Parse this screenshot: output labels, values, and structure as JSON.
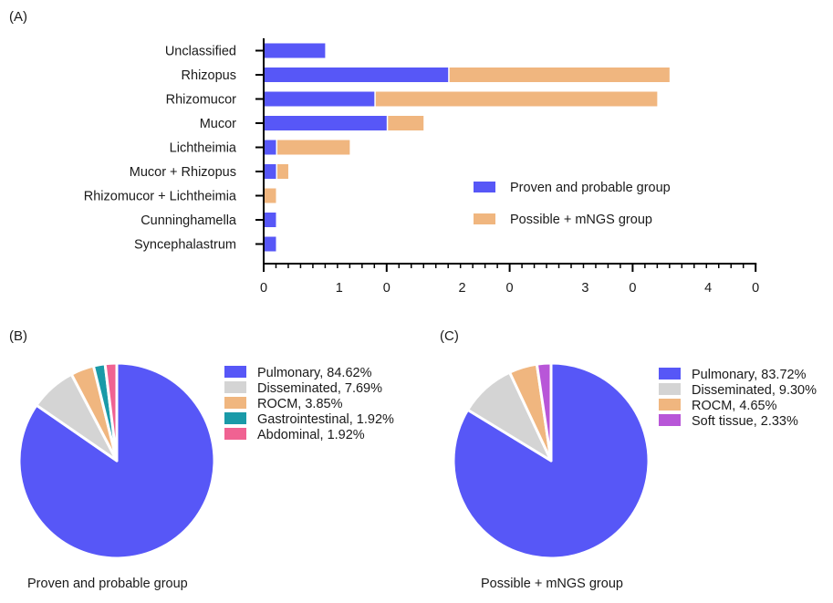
{
  "chart_data": [
    {
      "panel": "(A)",
      "type": "bar",
      "orientation": "horizontal",
      "stacked": true,
      "categories": [
        "Unclassified",
        "Rhizopus",
        "Rhizomucor",
        "Mucor",
        "Lichtheimia",
        "Mucor + Rhizopus",
        "Rhizomucor + Lichtheimia",
        "Cunninghamella",
        "Syncephalastrum"
      ],
      "series": [
        {
          "name": "Proven and probable group",
          "color": "#5757F7",
          "values": [
            5,
            15,
            9,
            10,
            1,
            1,
            0,
            1,
            1
          ]
        },
        {
          "name": "Possible + mNGS group",
          "color": "#F0B67F",
          "values": [
            0,
            18,
            23,
            3,
            6,
            1,
            1,
            0,
            0
          ]
        }
      ],
      "xlim": [
        0,
        40
      ],
      "major_ticks": [
        0,
        10,
        20,
        30,
        40
      ],
      "tick_labels": [
        {
          "value": 0,
          "parts": [
            "0"
          ]
        },
        {
          "value": 10,
          "parts": [
            "1",
            "0"
          ]
        },
        {
          "value": 20,
          "parts": [
            "2",
            "0"
          ]
        },
        {
          "value": 30,
          "parts": [
            "3",
            "0"
          ]
        },
        {
          "value": 40,
          "parts": [
            "4",
            "0"
          ]
        }
      ],
      "minor_tick_step": 1,
      "legend_position": "bottom-right",
      "title": "",
      "xlabel": "",
      "ylabel": ""
    },
    {
      "panel": "(B)",
      "type": "pie",
      "caption": "Proven and probable group",
      "start": "top",
      "direction": "clockwise",
      "slices": [
        {
          "label": "Pulmonary",
          "value": 84.62,
          "legend": "Pulmonary, 84.62%",
          "color": "#5757F7"
        },
        {
          "label": "Disseminated",
          "value": 7.69,
          "legend": "Disseminated, 7.69%",
          "color": "#D4D4D4"
        },
        {
          "label": "ROCM",
          "value": 3.85,
          "legend": "ROCM, 3.85%",
          "color": "#F0B67F"
        },
        {
          "label": "Gastrointestinal",
          "value": 1.92,
          "legend": "Gastrointestinal, 1.92%",
          "color": "#1A9AA8"
        },
        {
          "label": "Abdominal",
          "value": 1.92,
          "legend": "Abdominal, 1.92%",
          "color": "#F06292"
        }
      ],
      "legend_position": "right"
    },
    {
      "panel": "(C)",
      "type": "pie",
      "caption": "Possible + mNGS group",
      "start": "top",
      "direction": "clockwise",
      "slices": [
        {
          "label": "Pulmonary",
          "value": 83.72,
          "legend": "Pulmonary, 83.72%",
          "color": "#5757F7"
        },
        {
          "label": "Disseminated",
          "value": 9.3,
          "legend": "Disseminated, 9.30%",
          "color": "#D4D4D4"
        },
        {
          "label": "ROCM",
          "value": 4.65,
          "legend": "ROCM, 4.65%",
          "color": "#F0B67F"
        },
        {
          "label": "Soft tissue",
          "value": 2.33,
          "legend": "Soft tissue, 2.33%",
          "color": "#B856D8"
        }
      ],
      "legend_position": "right"
    }
  ],
  "panels": {
    "a": "(A)",
    "b": "(B)",
    "c": "(C)"
  }
}
